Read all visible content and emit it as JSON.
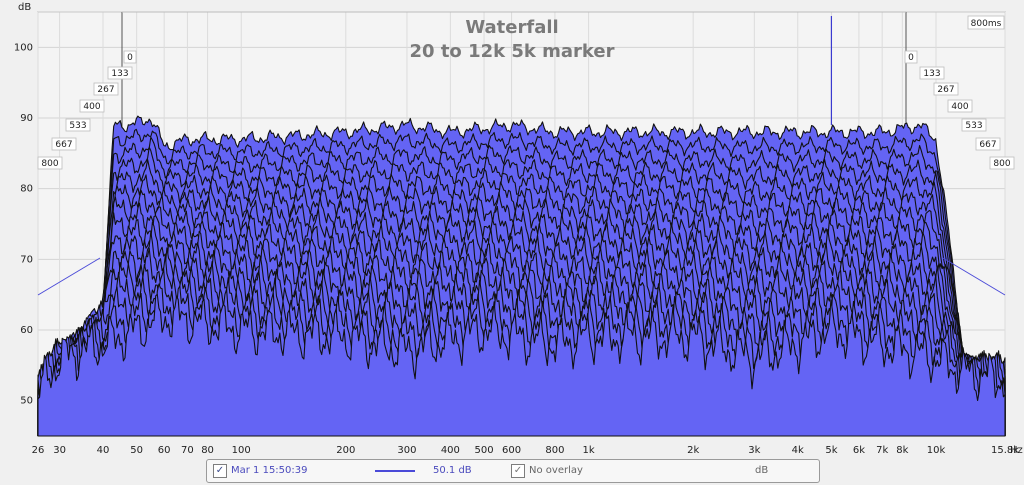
{
  "chart_data": {
    "type": "area",
    "title": "Waterfall",
    "subtitle": "20 to 12k 5k marker",
    "ylabel": "dB",
    "xlabel_unit": "Hz",
    "xscale": "log",
    "xlim": [
      26,
      15800
    ],
    "ylim": [
      45,
      105
    ],
    "y_ticks": [
      50,
      60,
      70,
      80,
      90,
      100
    ],
    "x_ticks": [
      {
        "value": 26,
        "label": "26"
      },
      {
        "value": 30,
        "label": "30"
      },
      {
        "value": 40,
        "label": "40"
      },
      {
        "value": 50,
        "label": "50"
      },
      {
        "value": 60,
        "label": "60"
      },
      {
        "value": 70,
        "label": "70"
      },
      {
        "value": 80,
        "label": "80"
      },
      {
        "value": 100,
        "label": "100"
      },
      {
        "value": 200,
        "label": "200"
      },
      {
        "value": 300,
        "label": "300"
      },
      {
        "value": 400,
        "label": "400"
      },
      {
        "value": 500,
        "label": "500"
      },
      {
        "value": 600,
        "label": "600"
      },
      {
        "value": 800,
        "label": "800"
      },
      {
        "value": 1000,
        "label": "1k"
      },
      {
        "value": 2000,
        "label": "2k"
      },
      {
        "value": 3000,
        "label": "3k"
      },
      {
        "value": 4000,
        "label": "4k"
      },
      {
        "value": 5000,
        "label": "5k"
      },
      {
        "value": 6000,
        "label": "6k"
      },
      {
        "value": 7000,
        "label": "7k"
      },
      {
        "value": 8000,
        "label": "8k"
      },
      {
        "value": 10000,
        "label": "10k"
      },
      {
        "value": 15800,
        "label": "15.8k"
      }
    ],
    "time_labels_ms": [
      "0",
      "133",
      "267",
      "400",
      "533",
      "667",
      "800"
    ],
    "time_axis_max_label": "800ms",
    "marker_frequency_hz": 5000,
    "fill_color": "#6464f4",
    "line_color": "#111111",
    "slice_envelope": {
      "freq_hz": [
        26,
        30,
        35,
        40,
        43,
        48,
        55,
        60,
        70,
        100,
        200,
        300,
        400,
        600,
        800,
        1000,
        2000,
        3000,
        5000,
        7000,
        9000,
        10000,
        11000,
        12000,
        15800
      ],
      "level_db": [
        52,
        57,
        60,
        64,
        89,
        89,
        90,
        86,
        87,
        87,
        88,
        89,
        88,
        89,
        88,
        88,
        88,
        88,
        88,
        88,
        89,
        87,
        72,
        56,
        54
      ]
    },
    "final_slice_envelope": {
      "freq_hz": [
        26,
        30,
        40,
        50,
        60,
        100,
        200,
        300,
        500,
        800,
        1000,
        2000,
        3000,
        4000,
        5000,
        7000,
        10000,
        12000,
        15800
      ],
      "level_db": [
        51,
        56,
        58,
        60,
        62,
        60,
        59,
        57,
        60,
        58,
        59,
        59,
        56,
        58,
        60,
        58,
        56,
        54,
        53
      ]
    },
    "slices": 16
  },
  "legend": {
    "series_checked": "✓",
    "series_name": "Mar 1 15:50:39",
    "series_value": "50.1 dB",
    "overlay_checked": "✓",
    "overlay_label": "No overlay",
    "unit": "dB"
  }
}
